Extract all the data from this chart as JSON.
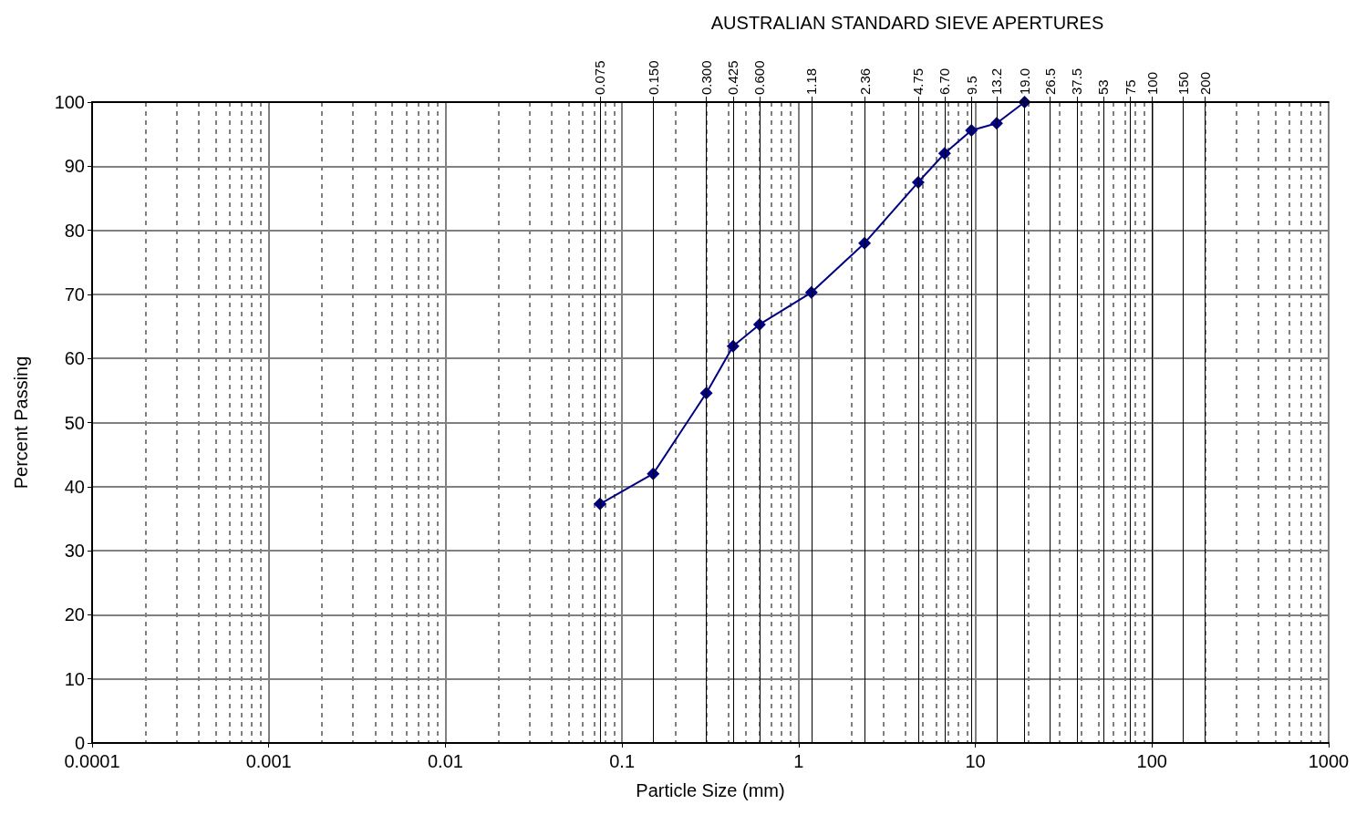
{
  "chart_data": {
    "type": "line",
    "title": "AUSTRALIAN STANDARD SIEVE APERTURES",
    "xlabel": "Particle Size (mm)",
    "ylabel": "Percent Passing",
    "x": [
      0.075,
      0.15,
      0.3,
      0.425,
      0.6,
      1.18,
      2.36,
      4.75,
      6.7,
      9.5,
      13.2,
      19.0
    ],
    "series": [
      {
        "color": "#000080",
        "values": [
          37.3,
          42.0,
          54.6,
          61.9,
          65.3,
          70.3,
          78.0,
          87.5,
          92.0,
          95.6,
          96.7,
          100
        ]
      }
    ],
    "marker": "diamond",
    "line_style": "solid",
    "log": "x",
    "grid": true,
    "xlim": [
      0.0001,
      1000
    ],
    "xticks": [
      0.0001,
      {
        "value": 0.0002,
        "label": null
      },
      {
        "value": 0.0003,
        "label": null
      },
      {
        "value": 0.0004,
        "label": null
      },
      {
        "value": 0.0005,
        "label": null
      },
      {
        "value": 0.0006,
        "label": null
      },
      {
        "value": 0.0007,
        "label": null
      },
      {
        "value": 0.0008,
        "label": null
      },
      {
        "value": 0.0009,
        "label": null
      },
      0.001,
      {
        "value": 0.002,
        "label": null
      },
      {
        "value": 0.003,
        "label": null
      },
      {
        "value": 0.004,
        "label": null
      },
      {
        "value": 0.005,
        "label": null
      },
      {
        "value": 0.006,
        "label": null
      },
      {
        "value": 0.007,
        "label": null
      },
      {
        "value": 0.008,
        "label": null
      },
      {
        "value": 0.009,
        "label": null
      },
      0.01,
      {
        "value": 0.02,
        "label": null
      },
      {
        "value": 0.03,
        "label": null
      },
      {
        "value": 0.04,
        "label": null
      },
      {
        "value": 0.05,
        "label": null
      },
      {
        "value": 0.06,
        "label": null
      },
      {
        "value": 0.07,
        "label": null
      },
      {
        "value": 0.08,
        "label": null
      },
      {
        "value": 0.09,
        "label": null
      },
      0.1,
      {
        "value": 0.2,
        "label": null
      },
      {
        "value": 0.3,
        "label": null
      },
      {
        "value": 0.4,
        "label": null
      },
      {
        "value": 0.5,
        "label": null
      },
      {
        "value": 0.6,
        "label": null
      },
      {
        "value": 0.7,
        "label": null
      },
      {
        "value": 0.8,
        "label": null
      },
      {
        "value": 0.9,
        "label": null
      },
      1,
      {
        "value": 2,
        "label": null
      },
      {
        "value": 3,
        "label": null
      },
      {
        "value": 4,
        "label": null
      },
      {
        "value": 5,
        "label": null
      },
      {
        "value": 6,
        "label": null
      },
      {
        "value": 7,
        "label": null
      },
      {
        "value": 8,
        "label": null
      },
      {
        "value": 9,
        "label": null
      },
      10,
      {
        "value": 20,
        "label": null
      },
      {
        "value": 30,
        "label": null
      },
      {
        "value": 40,
        "label": null
      },
      {
        "value": 50,
        "label": null
      },
      {
        "value": 60,
        "label": null
      },
      {
        "value": 70,
        "label": null
      },
      {
        "value": 80,
        "label": null
      },
      {
        "value": 90,
        "label": null
      },
      100,
      {
        "value": 200,
        "label": null
      },
      {
        "value": 300,
        "label": null
      },
      {
        "value": 400,
        "label": null
      },
      {
        "value": 500,
        "label": null
      },
      {
        "value": 600,
        "label": null
      },
      {
        "value": 700,
        "label": null
      },
      {
        "value": 800,
        "label": null
      },
      {
        "value": 900,
        "label": null
      },
      1000
    ],
    "ref_lines": [
      {
        "axis": "x",
        "value": 0.075,
        "label": "0.075"
      },
      {
        "axis": "x",
        "value": 0.15,
        "label": "0.150"
      },
      {
        "axis": "x",
        "value": 0.3,
        "label": "0.300"
      },
      {
        "axis": "x",
        "value": 0.425,
        "label": "0.425"
      },
      {
        "axis": "x",
        "value": 0.6,
        "label": "0.600"
      },
      {
        "axis": "x",
        "value": 1.18,
        "label": "1.18"
      },
      {
        "axis": "x",
        "value": 2.36,
        "label": "2.36"
      },
      {
        "axis": "x",
        "value": 4.75,
        "label": "4.75"
      },
      {
        "axis": "x",
        "value": 6.7,
        "label": "6.70"
      },
      {
        "axis": "x",
        "value": 9.5,
        "label": "9.5"
      },
      {
        "axis": "x",
        "value": 13.2,
        "label": "13.2"
      },
      {
        "axis": "x",
        "value": 19,
        "label": "19.0"
      },
      {
        "axis": "x",
        "value": 26.5,
        "label": "26.5"
      },
      {
        "axis": "x",
        "value": 37.5,
        "label": "37.5"
      },
      {
        "axis": "x",
        "value": 53,
        "label": "53"
      },
      {
        "axis": "x",
        "value": 75,
        "label": "75"
      },
      {
        "axis": "x",
        "value": 100,
        "label": "100"
      },
      {
        "axis": "x",
        "value": 150,
        "label": "150"
      },
      {
        "axis": "x",
        "value": 200,
        "label": "200"
      }
    ],
    "ylim": [
      0,
      100
    ],
    "yticks": [
      0,
      10,
      20,
      30,
      40,
      50,
      60,
      70,
      80,
      90,
      100
    ]
  }
}
